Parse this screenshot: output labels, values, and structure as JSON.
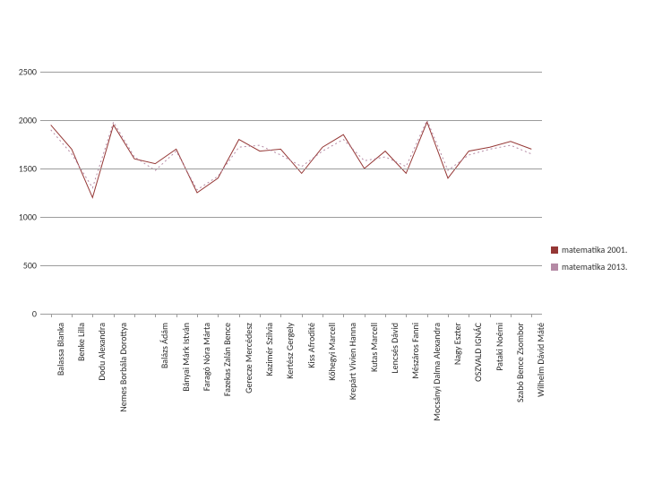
{
  "chart": {
    "type": "line",
    "background_color": "#ffffff",
    "grid_color": "#9c9c9c",
    "ylim": [
      0,
      2500
    ],
    "ytick_step": 500,
    "yticks": [
      0,
      500,
      1000,
      1500,
      2000,
      2500
    ],
    "line_style_1": "solid",
    "line_style_2": "dotted",
    "line_width": 1,
    "label_fontsize": 10,
    "label_rotation": -90,
    "categories": [
      "Balassa Blanka",
      "Benke Lilla",
      "Dodu Alexandra",
      "Nemes Borbála Dorottya",
      "",
      "Balázs Ádám",
      "Bányai Márk István",
      "Faragó Nóra Márta",
      "Fazekas Zalán Bence",
      "Gerecze Mercédesz",
      "Kazimér Szilvia",
      "Kertész Gergely",
      "Kiss Afrodité",
      "Kőhegyi Marcell",
      "Krepárt Vivien Hanna",
      "Kutas Marcell",
      "Lencsés Dávid",
      "Mészáros Fanni",
      "Mocsányi Dalma Alexandra",
      "Nagy Eszter",
      "OSZVALD IGNÁC",
      "Pataki Noémi",
      "Szabó Bence Zsombor",
      "Wilhelm Dávid Máté"
    ],
    "series": [
      {
        "name": "matematika 2001.",
        "color": "#953735",
        "dashed": false,
        "values": [
          1950,
          1700,
          1200,
          1950,
          1600,
          1550,
          1700,
          1250,
          1400,
          1800,
          1680,
          1700,
          1450,
          1720,
          1850,
          1500,
          1680,
          1450,
          1980,
          1400,
          1680,
          1720,
          1780,
          1700
        ]
      },
      {
        "name": "matematika 2013.",
        "color": "#b58aa5",
        "dashed": true,
        "values": [
          1900,
          1650,
          1300,
          1980,
          1620,
          1480,
          1680,
          1280,
          1420,
          1720,
          1740,
          1640,
          1520,
          1680,
          1800,
          1580,
          1620,
          1520,
          2000,
          1480,
          1640,
          1700,
          1740,
          1650
        ]
      }
    ]
  },
  "legend": {
    "items": [
      {
        "label": "matematika 2001.",
        "color": "#953735"
      },
      {
        "label": "matematika 2013.",
        "color": "#b58aa5"
      }
    ]
  }
}
